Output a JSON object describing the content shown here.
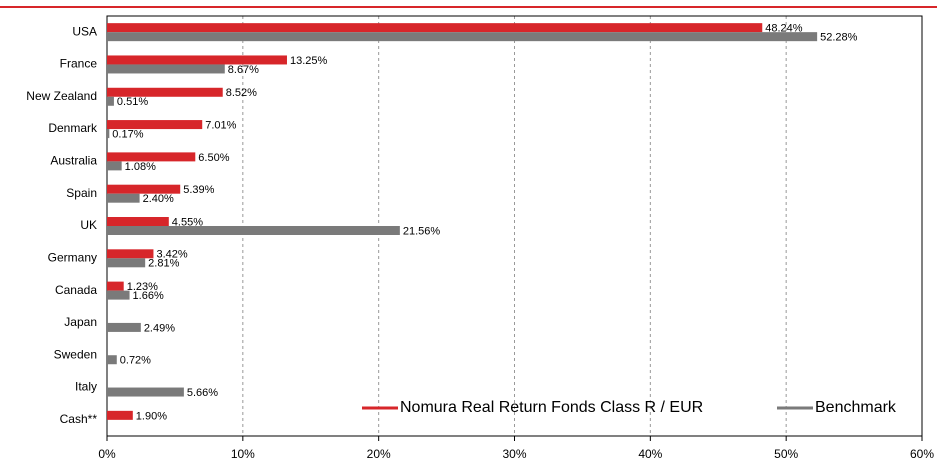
{
  "chart_data": {
    "type": "hbar",
    "categories": [
      "USA",
      "France",
      "New Zealand",
      "Denmark",
      "Australia",
      "Spain",
      "UK",
      "Germany",
      "Canada",
      "Japan",
      "Sweden",
      "Italy",
      "Cash**"
    ],
    "series": [
      {
        "name": "Nomura Real Return Fonds Class R / EUR",
        "color": "#d7262a",
        "values": [
          48.24,
          13.25,
          8.52,
          7.01,
          6.5,
          5.39,
          4.55,
          3.42,
          1.23,
          null,
          null,
          null,
          1.9
        ],
        "value_labels": [
          "48.24%",
          "13.25%",
          "8.52%",
          "7.01%",
          "6.50%",
          "5.39%",
          "4.55%",
          "3.42%",
          "1.23%",
          null,
          null,
          null,
          "1.90%"
        ]
      },
      {
        "name": "Benchmark",
        "color": "#7a7a7a",
        "values": [
          52.28,
          8.67,
          0.51,
          0.17,
          1.08,
          2.4,
          21.56,
          2.81,
          1.66,
          2.49,
          0.72,
          5.66,
          null
        ],
        "value_labels": [
          "52.28%",
          "8.67%",
          "0.51%",
          "0.17%",
          "1.08%",
          "2.40%",
          "21.56%",
          "2.81%",
          "1.66%",
          "2.49%",
          "0.72%",
          "5.66%",
          null
        ]
      }
    ],
    "xlim": [
      0,
      60
    ],
    "xticks": [
      {
        "value": 0,
        "label": "0%"
      },
      {
        "value": 10,
        "label": "10%"
      },
      {
        "value": 20,
        "label": "20%"
      },
      {
        "value": 30,
        "label": "30%"
      },
      {
        "value": 40,
        "label": "40%"
      },
      {
        "value": 50,
        "label": "50%"
      },
      {
        "value": 60,
        "label": "60%"
      }
    ],
    "grid": true,
    "legend": "lower right"
  }
}
